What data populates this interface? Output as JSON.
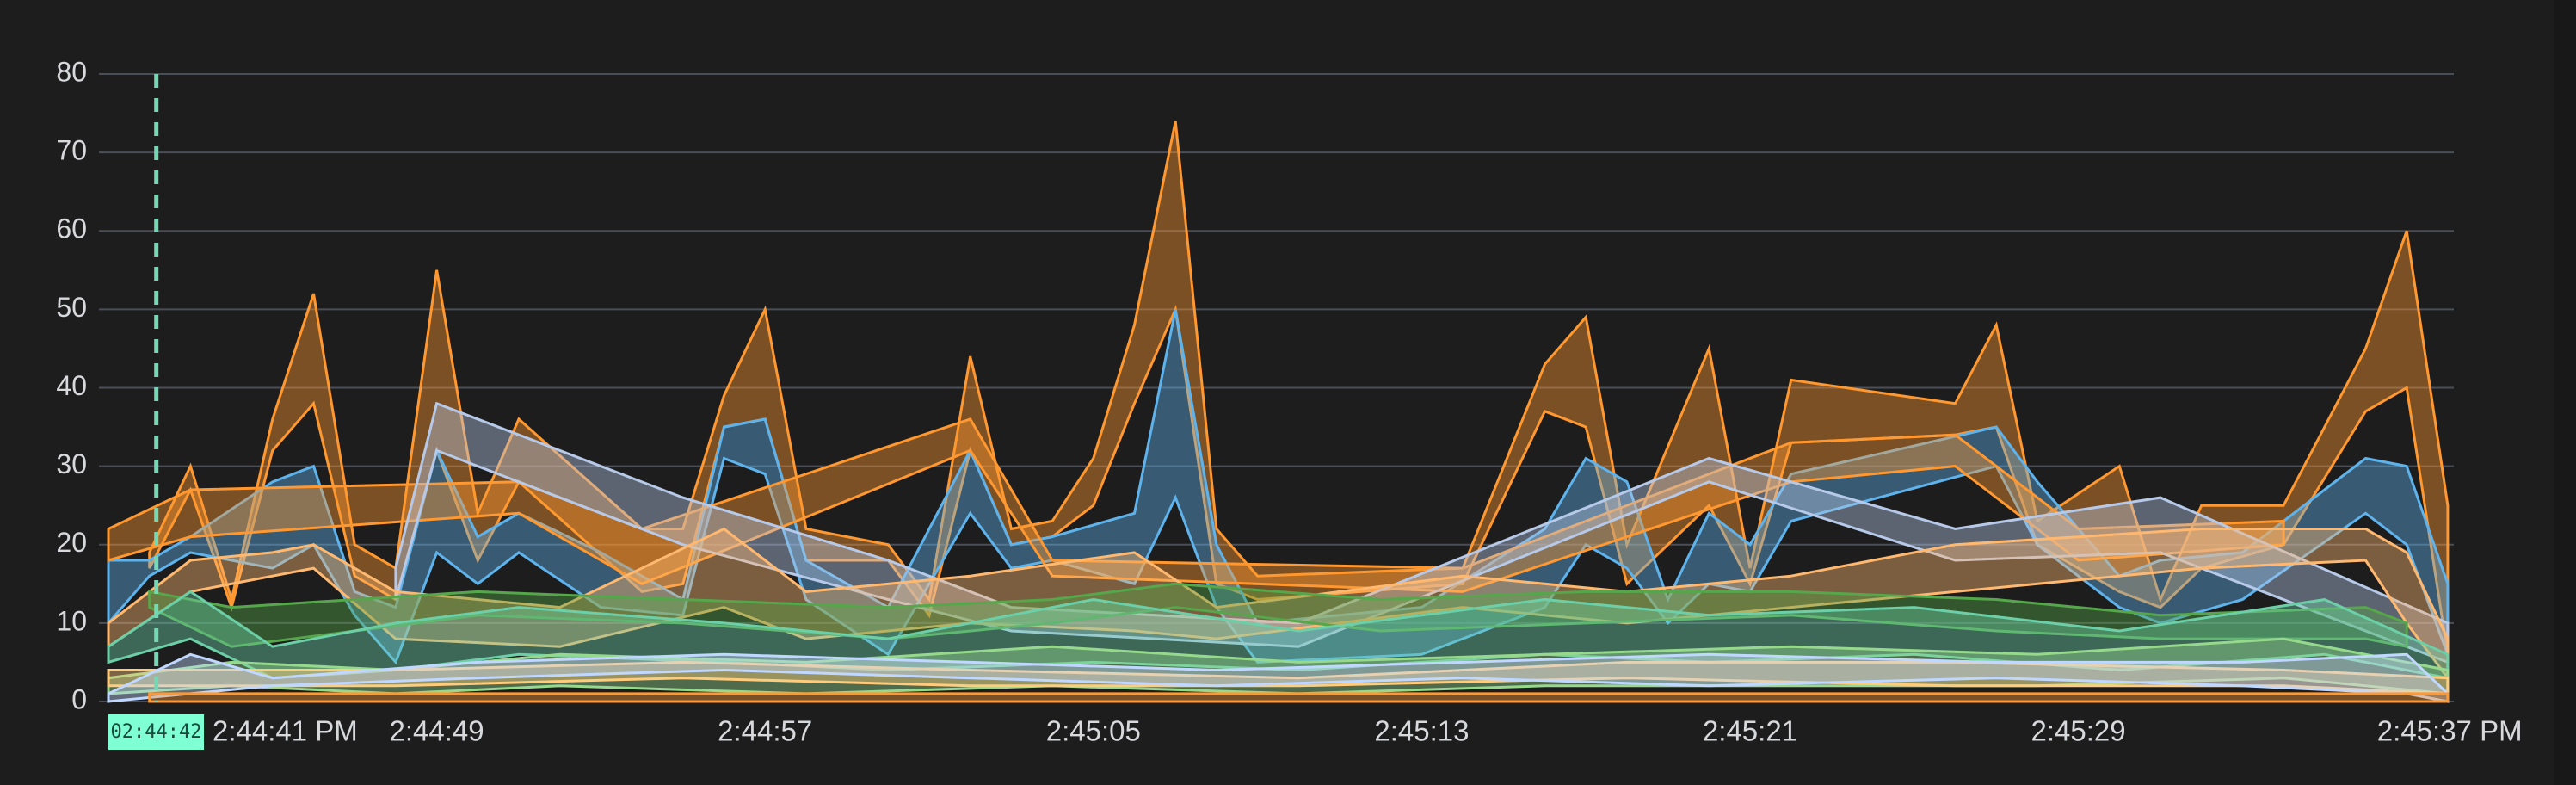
{
  "chart_data": {
    "type": "area",
    "variant": "min-max bands",
    "title": "",
    "xlabel": "",
    "ylabel": "",
    "ylim": [
      0,
      80
    ],
    "y_ticks": [
      "0",
      "10",
      "20",
      "30",
      "40",
      "50",
      "60",
      "70",
      "80"
    ],
    "x_range": [
      "2:44:41",
      "2:45:38"
    ],
    "x_ticks": [
      {
        "t": "2:44:41",
        "label": "2:44:41 PM"
      },
      {
        "t": "2:44:49",
        "label": "2:44:49"
      },
      {
        "t": "2:44:57",
        "label": "2:44:57"
      },
      {
        "t": "2:45:05",
        "label": "2:45:05"
      },
      {
        "t": "2:45:13",
        "label": "2:45:13"
      },
      {
        "t": "2:45:21",
        "label": "2:45:21"
      },
      {
        "t": "2:45:29",
        "label": "2:45:29"
      },
      {
        "t": "2:45:37",
        "label": "2:45:37 PM"
      }
    ],
    "grid": true,
    "legend": "none",
    "cursor": {
      "t": "2:44:42",
      "label": "02:44:42",
      "color": "#73d9b5",
      "badge_color": "#7fffd4"
    },
    "series": [
      {
        "color": "#ff9830",
        "points": [
          [
            "2:44:42",
            17,
            19
          ],
          [
            "2:44:43",
            27,
            30
          ],
          [
            "2:44:44",
            12,
            13
          ],
          [
            "2:44:45",
            32,
            36
          ],
          [
            "2:44:46",
            38,
            52
          ],
          [
            "2:44:47",
            16,
            20
          ],
          [
            "2:44:48",
            13,
            17
          ],
          [
            "2:44:49",
            32,
            55
          ],
          [
            "2:44:50",
            18,
            24
          ],
          [
            "2:44:51",
            28,
            36
          ],
          [
            "2:44:54",
            14,
            22
          ],
          [
            "2:44:55",
            15,
            22
          ],
          [
            "2:44:56",
            35,
            39
          ],
          [
            "2:44:57",
            36,
            50
          ],
          [
            "2:44:58",
            18,
            22
          ],
          [
            "2:45:00",
            18,
            20
          ],
          [
            "2:45:01",
            11,
            13
          ],
          [
            "2:45:02",
            32,
            44
          ],
          [
            "2:45:03",
            20,
            22
          ],
          [
            "2:45:04",
            21,
            23
          ],
          [
            "2:45:05",
            25,
            31
          ],
          [
            "2:45:06",
            38,
            48
          ],
          [
            "2:45:07",
            50,
            74
          ],
          [
            "2:45:08",
            15,
            22
          ],
          [
            "2:45:09",
            13,
            16
          ],
          [
            "2:45:14",
            15,
            17
          ],
          [
            "2:45:16",
            37,
            43
          ],
          [
            "2:45:17",
            35,
            49
          ],
          [
            "2:45:18",
            15,
            20
          ],
          [
            "2:45:20",
            25,
            45
          ],
          [
            "2:45:21",
            15,
            17
          ],
          [
            "2:45:22",
            33,
            41
          ],
          [
            "2:45:26",
            34,
            38
          ],
          [
            "2:45:27",
            35,
            48
          ],
          [
            "2:45:28",
            20,
            23
          ],
          [
            "2:45:30",
            14,
            30
          ],
          [
            "2:45:31",
            12,
            13
          ],
          [
            "2:45:32",
            17,
            25
          ],
          [
            "2:45:34",
            20,
            25
          ],
          [
            "2:45:36",
            37,
            45
          ],
          [
            "2:45:37",
            40,
            60
          ],
          [
            "2:45:38",
            6,
            25
          ]
        ]
      },
      {
        "color": "#5fb3ec",
        "points": [
          [
            "2:44:41",
            10,
            18
          ],
          [
            "2:44:42",
            16,
            18
          ],
          [
            "2:44:43",
            19,
            21
          ],
          [
            "2:44:45",
            17,
            28
          ],
          [
            "2:44:46",
            20,
            30
          ],
          [
            "2:44:47",
            11,
            14
          ],
          [
            "2:44:48",
            5,
            12
          ],
          [
            "2:44:49",
            19,
            32
          ],
          [
            "2:44:50",
            15,
            21
          ],
          [
            "2:44:51",
            19,
            24
          ],
          [
            "2:44:53",
            12,
            19
          ],
          [
            "2:44:55",
            11,
            13
          ],
          [
            "2:44:56",
            31,
            35
          ],
          [
            "2:44:57",
            29,
            36
          ],
          [
            "2:44:58",
            13,
            18
          ],
          [
            "2:45:00",
            6,
            12
          ],
          [
            "2:45:02",
            24,
            32
          ],
          [
            "2:45:03",
            17,
            20
          ],
          [
            "2:45:04",
            18,
            21
          ],
          [
            "2:45:06",
            15,
            24
          ],
          [
            "2:45:07",
            26,
            50
          ],
          [
            "2:45:08",
            12,
            20
          ],
          [
            "2:45:09",
            5,
            10
          ],
          [
            "2:45:13",
            6,
            12
          ],
          [
            "2:45:16",
            12,
            22
          ],
          [
            "2:45:17",
            20,
            31
          ],
          [
            "2:45:18",
            17,
            28
          ],
          [
            "2:45:19",
            10,
            13
          ],
          [
            "2:45:20",
            15,
            24
          ],
          [
            "2:45:21",
            14,
            20
          ],
          [
            "2:45:22",
            23,
            29
          ],
          [
            "2:45:27",
            30,
            35
          ],
          [
            "2:45:28",
            20,
            28
          ],
          [
            "2:45:30",
            12,
            16
          ],
          [
            "2:45:31",
            10,
            18
          ],
          [
            "2:45:33",
            13,
            19
          ],
          [
            "2:45:36",
            24,
            31
          ],
          [
            "2:45:37",
            20,
            30
          ],
          [
            "2:45:38",
            6,
            15
          ]
        ]
      },
      {
        "color": "#ff9830",
        "points": [
          [
            "2:44:41",
            18,
            22
          ],
          [
            "2:44:43",
            21,
            27
          ],
          [
            "2:44:51",
            24,
            28
          ],
          [
            "2:44:54",
            15,
            22
          ],
          [
            "2:45:02",
            32,
            36
          ],
          [
            "2:45:04",
            16,
            18
          ],
          [
            "2:45:14",
            14,
            17
          ],
          [
            "2:45:22",
            28,
            33
          ],
          [
            "2:45:26",
            30,
            34
          ],
          [
            "2:45:29",
            18,
            22
          ],
          [
            "2:45:34",
            20,
            23
          ]
        ]
      },
      {
        "color": "#b7c9e8",
        "points": [
          [
            "2:44:48",
            13,
            17
          ],
          [
            "2:44:49",
            32,
            38
          ],
          [
            "2:44:55",
            20,
            26
          ],
          [
            "2:45:00",
            13,
            18
          ],
          [
            "2:45:03",
            9,
            12
          ],
          [
            "2:45:10",
            7,
            10
          ],
          [
            "2:45:20",
            28,
            31
          ],
          [
            "2:45:26",
            18,
            22
          ],
          [
            "2:45:31",
            19,
            26
          ],
          [
            "2:45:38",
            5,
            10
          ]
        ]
      },
      {
        "color": "#ffb870",
        "points": [
          [
            "2:44:41",
            7,
            10
          ],
          [
            "2:44:43",
            14,
            18
          ],
          [
            "2:44:45",
            16,
            19
          ],
          [
            "2:44:46",
            17,
            20
          ],
          [
            "2:44:48",
            8,
            14
          ],
          [
            "2:44:52",
            7,
            12
          ],
          [
            "2:44:56",
            12,
            22
          ],
          [
            "2:44:58",
            8,
            14
          ],
          [
            "2:45:02",
            10,
            16
          ],
          [
            "2:45:06",
            9,
            19
          ],
          [
            "2:45:08",
            8,
            12
          ],
          [
            "2:45:14",
            12,
            16
          ],
          [
            "2:45:18",
            10,
            14
          ],
          [
            "2:45:22",
            12,
            16
          ],
          [
            "2:45:26",
            14,
            20
          ],
          [
            "2:45:32",
            17,
            22
          ],
          [
            "2:45:36",
            18,
            22
          ],
          [
            "2:45:37",
            10,
            19
          ],
          [
            "2:45:38",
            3,
            8
          ]
        ]
      },
      {
        "color": "#56a64b",
        "points": [
          [
            "2:44:42",
            12,
            14
          ],
          [
            "2:44:44",
            7,
            12
          ],
          [
            "2:44:50",
            11,
            14
          ],
          [
            "2:44:55",
            10,
            13
          ],
          [
            "2:45:00",
            8,
            12
          ],
          [
            "2:45:04",
            10,
            13
          ],
          [
            "2:45:07",
            12,
            15
          ],
          [
            "2:45:12",
            9,
            13
          ],
          [
            "2:45:17",
            10,
            14
          ],
          [
            "2:45:22",
            11,
            14
          ],
          [
            "2:45:27",
            9,
            13
          ],
          [
            "2:45:31",
            8,
            11
          ],
          [
            "2:45:36",
            8,
            12
          ],
          [
            "2:45:37",
            7,
            10
          ]
        ]
      },
      {
        "color": "#6ccfa8",
        "points": [
          [
            "2:44:41",
            5,
            7
          ],
          [
            "2:44:43",
            8,
            14
          ],
          [
            "2:44:45",
            3,
            7
          ],
          [
            "2:44:48",
            4,
            10
          ],
          [
            "2:44:51",
            6,
            12
          ],
          [
            "2:44:56",
            5,
            10
          ],
          [
            "2:45:00",
            4,
            8
          ],
          [
            "2:45:05",
            5,
            13
          ],
          [
            "2:45:10",
            4,
            9
          ],
          [
            "2:45:16",
            6,
            13
          ],
          [
            "2:45:20",
            5,
            11
          ],
          [
            "2:45:25",
            6,
            12
          ],
          [
            "2:45:30",
            4,
            9
          ],
          [
            "2:45:35",
            6,
            13
          ],
          [
            "2:45:38",
            3,
            6
          ]
        ]
      },
      {
        "color": "#96d98d",
        "points": [
          [
            "2:44:41",
            1,
            3
          ],
          [
            "2:44:44",
            2,
            5
          ],
          [
            "2:44:48",
            1,
            4
          ],
          [
            "2:44:52",
            2,
            6
          ],
          [
            "2:44:58",
            1,
            5
          ],
          [
            "2:45:04",
            2,
            7
          ],
          [
            "2:45:10",
            1,
            5
          ],
          [
            "2:45:16",
            2,
            6
          ],
          [
            "2:45:22",
            2,
            7
          ],
          [
            "2:45:28",
            2,
            6
          ],
          [
            "2:45:34",
            3,
            8
          ],
          [
            "2:45:38",
            1,
            4
          ]
        ]
      },
      {
        "color": "#ffcb7d",
        "points": [
          [
            "2:44:41",
            2,
            4
          ],
          [
            "2:44:48",
            2,
            4
          ],
          [
            "2:44:55",
            3,
            5
          ],
          [
            "2:45:02",
            2,
            4
          ],
          [
            "2:45:10",
            2,
            3
          ],
          [
            "2:45:18",
            3,
            5
          ],
          [
            "2:45:26",
            2,
            5
          ],
          [
            "2:45:34",
            2,
            4
          ],
          [
            "2:45:38",
            1,
            3
          ]
        ]
      },
      {
        "color": "#c0d8ff",
        "points": [
          [
            "2:44:41",
            0,
            1
          ],
          [
            "2:44:43",
            1,
            6
          ],
          [
            "2:44:45",
            2,
            3
          ],
          [
            "2:44:50",
            3,
            5
          ],
          [
            "2:44:56",
            4,
            6
          ],
          [
            "2:45:02",
            3,
            5
          ],
          [
            "2:45:08",
            2,
            4
          ],
          [
            "2:45:14",
            3,
            5
          ],
          [
            "2:45:20",
            2,
            6
          ],
          [
            "2:45:27",
            3,
            5
          ],
          [
            "2:45:33",
            2,
            5
          ],
          [
            "2:45:37",
            1,
            6
          ],
          [
            "2:45:38",
            0,
            1
          ]
        ]
      },
      {
        "color": "#ff9830",
        "points": [
          [
            "2:44:42",
            0,
            1
          ],
          [
            "2:44:50",
            0,
            1
          ],
          [
            "2:45:00",
            0,
            1
          ],
          [
            "2:45:10",
            0,
            1
          ],
          [
            "2:45:20",
            0,
            1
          ],
          [
            "2:45:30",
            0,
            1
          ],
          [
            "2:45:38",
            0,
            1
          ]
        ]
      }
    ]
  }
}
